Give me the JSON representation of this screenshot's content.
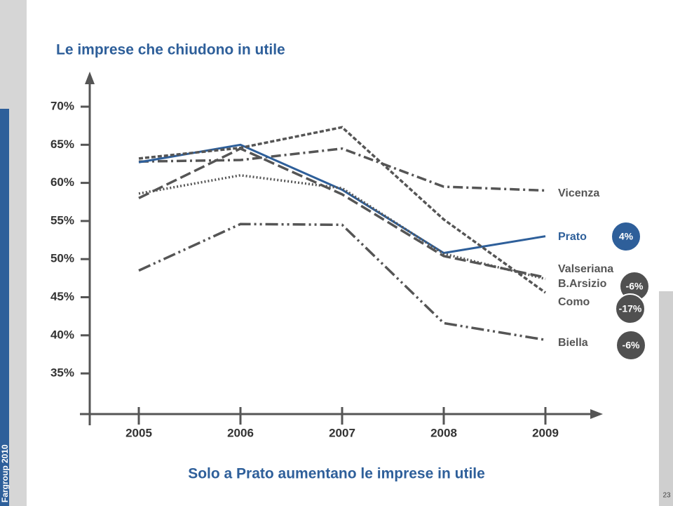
{
  "chart_data": {
    "type": "line",
    "title": "Le imprese che chiudono in utile",
    "subtitle": "Solo a Prato aumentano le imprese in utile",
    "categories": [
      "2005",
      "2006",
      "2007",
      "2008",
      "2009"
    ],
    "ylim": [
      30,
      75
    ],
    "yticks": [
      {
        "value": 35,
        "label": "35%"
      },
      {
        "value": 40,
        "label": "40%"
      },
      {
        "value": 45,
        "label": "45%"
      },
      {
        "value": 50,
        "label": "50%"
      },
      {
        "value": 55,
        "label": "55%"
      },
      {
        "value": 60,
        "label": "60%"
      },
      {
        "value": 65,
        "label": "65%"
      },
      {
        "value": 70,
        "label": "70%"
      }
    ],
    "series": [
      {
        "name": "Vicenza",
        "color": "#555555",
        "dash": "14 5 3 5",
        "values": [
          62.8,
          63,
          64.5,
          59.5,
          59
        ]
      },
      {
        "name": "Prato",
        "color": "#2e5f9a",
        "dash": "none",
        "values": [
          62.7,
          65,
          59.1,
          50.8,
          53
        ],
        "badge": "4%",
        "badge_color": "#2e5f9a"
      },
      {
        "name": "Valseriana",
        "color": "#555555",
        "dash": "2 3",
        "values": [
          58.6,
          61,
          59.3,
          50.7,
          47.4
        ]
      },
      {
        "name": "B.Arsizio",
        "color": "#555555",
        "dash": "16 6",
        "values": [
          58,
          64.5,
          58.5,
          50.4,
          47.6
        ],
        "badge": "-6%",
        "badge_color": "#505050"
      },
      {
        "name": "Como",
        "color": "#555555",
        "dash": "6 3",
        "values": [
          63.2,
          64.6,
          67.3,
          55.2,
          45.6
        ],
        "badge": "-17%",
        "badge_color": "#505050"
      },
      {
        "name": "Biella",
        "color": "#555555",
        "dash": "18 5 3 5 3 5",
        "values": [
          48.5,
          54.6,
          54.5,
          41.6,
          39.4
        ],
        "badge": "-6%",
        "badge_color": "#505050"
      }
    ]
  },
  "footer": {
    "left": "Fargroup 2010",
    "page": "23"
  }
}
